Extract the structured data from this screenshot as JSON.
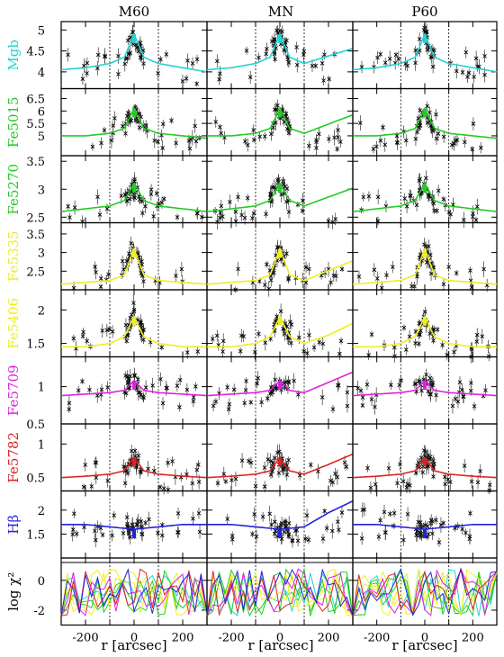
{
  "chart_data": {
    "type": "scatter",
    "columns": [
      "M60",
      "MN",
      "P60"
    ],
    "xlabel": "r [arcsec]",
    "xlim": [
      -300,
      300
    ],
    "xticks": [
      -200,
      0,
      200
    ],
    "vlines_arcsec": [
      -100,
      100
    ],
    "panels": [
      {
        "label": "Mgb",
        "color": "#22d3d3",
        "ylim": [
          3.6,
          5.2
        ],
        "yticks": [
          4,
          4.5,
          5
        ],
        "model": [
          [
            -300,
            4.05
          ],
          [
            -200,
            4.1
          ],
          [
            -100,
            4.2
          ],
          [
            -40,
            4.35
          ],
          [
            0,
            4.9
          ],
          [
            40,
            4.35
          ],
          [
            100,
            4.2
          ],
          [
            200,
            4.1
          ],
          [
            300,
            4.0
          ]
        ]
      },
      {
        "label": "Fe5015",
        "color": "#22cc22",
        "ylim": [
          4.2,
          6.9
        ],
        "yticks": [
          5,
          5.5,
          6,
          6.5
        ],
        "model": [
          [
            -300,
            5.0
          ],
          [
            -200,
            5.0
          ],
          [
            -100,
            5.1
          ],
          [
            -40,
            5.3
          ],
          [
            0,
            6.1
          ],
          [
            40,
            5.3
          ],
          [
            100,
            5.1
          ],
          [
            200,
            5.0
          ],
          [
            300,
            4.9
          ]
        ]
      },
      {
        "label": "Fe5270",
        "color": "#22cc22",
        "ylim": [
          2.4,
          3.6
        ],
        "yticks": [
          2.5,
          3,
          3.5
        ],
        "model": [
          [
            -300,
            2.6
          ],
          [
            -200,
            2.65
          ],
          [
            -100,
            2.7
          ],
          [
            -40,
            2.8
          ],
          [
            0,
            3.1
          ],
          [
            40,
            2.8
          ],
          [
            100,
            2.7
          ],
          [
            200,
            2.65
          ],
          [
            300,
            2.6
          ]
        ]
      },
      {
        "label": "Fe5335",
        "color": "#eeee22",
        "ylim": [
          2.0,
          3.8
        ],
        "yticks": [
          2.5,
          3,
          3.5
        ],
        "model": [
          [
            -300,
            2.15
          ],
          [
            -200,
            2.2
          ],
          [
            -100,
            2.25
          ],
          [
            -40,
            2.4
          ],
          [
            0,
            3.1
          ],
          [
            40,
            2.4
          ],
          [
            100,
            2.25
          ],
          [
            200,
            2.2
          ],
          [
            300,
            2.15
          ]
        ]
      },
      {
        "label": "Fe5406",
        "color": "#eeee22",
        "ylim": [
          1.3,
          2.3
        ],
        "yticks": [
          1.5,
          2
        ],
        "model": [
          [
            -300,
            1.45
          ],
          [
            -200,
            1.45
          ],
          [
            -100,
            1.5
          ],
          [
            -40,
            1.6
          ],
          [
            0,
            1.9
          ],
          [
            40,
            1.6
          ],
          [
            100,
            1.5
          ],
          [
            200,
            1.45
          ],
          [
            300,
            1.45
          ]
        ]
      },
      {
        "label": "Fe5709",
        "color": "#dd22dd",
        "ylim": [
          0.5,
          1.4
        ],
        "yticks": [
          0.5,
          1
        ],
        "model": [
          [
            -300,
            0.88
          ],
          [
            -200,
            0.9
          ],
          [
            -100,
            0.92
          ],
          [
            -40,
            0.95
          ],
          [
            0,
            1.08
          ],
          [
            40,
            0.95
          ],
          [
            100,
            0.92
          ],
          [
            200,
            0.9
          ],
          [
            300,
            0.88
          ]
        ]
      },
      {
        "label": "Fe5782",
        "color": "#dd2222",
        "ylim": [
          0.3,
          1.3
        ],
        "yticks": [
          0.5,
          1
        ],
        "model": [
          [
            -300,
            0.5
          ],
          [
            -200,
            0.52
          ],
          [
            -100,
            0.55
          ],
          [
            -40,
            0.6
          ],
          [
            0,
            0.8
          ],
          [
            40,
            0.6
          ],
          [
            100,
            0.55
          ],
          [
            200,
            0.52
          ],
          [
            300,
            0.5
          ]
        ]
      },
      {
        "label": "Hβ",
        "color": "#2222dd",
        "ylim": [
          1.0,
          2.4
        ],
        "yticks": [
          1.5,
          2
        ],
        "model": [
          [
            -300,
            1.7
          ],
          [
            -200,
            1.7
          ],
          [
            -100,
            1.65
          ],
          [
            -40,
            1.62
          ],
          [
            0,
            1.6
          ],
          [
            40,
            1.62
          ],
          [
            100,
            1.65
          ],
          [
            200,
            1.7
          ],
          [
            300,
            1.7
          ]
        ]
      },
      {
        "label": "log χ²",
        "color": "#000000",
        "ylim": [
          -3,
          1.5
        ],
        "yticks": [
          -2,
          0
        ],
        "model": []
      }
    ]
  }
}
